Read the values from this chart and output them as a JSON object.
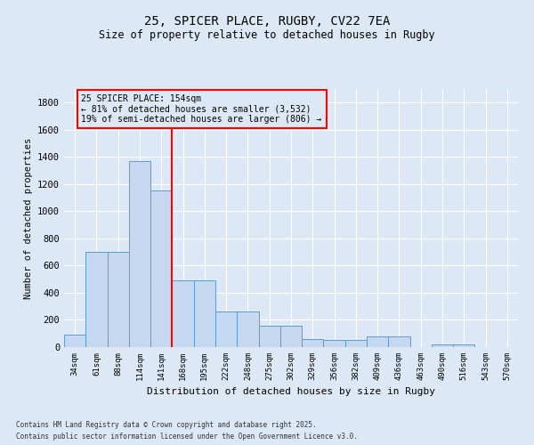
{
  "title": "25, SPICER PLACE, RUGBY, CV22 7EA",
  "subtitle": "Size of property relative to detached houses in Rugby",
  "xlabel": "Distribution of detached houses by size in Rugby",
  "ylabel": "Number of detached properties",
  "bar_labels": [
    "34sqm",
    "61sqm",
    "88sqm",
    "114sqm",
    "141sqm",
    "168sqm",
    "195sqm",
    "222sqm",
    "248sqm",
    "275sqm",
    "302sqm",
    "329sqm",
    "356sqm",
    "382sqm",
    "409sqm",
    "436sqm",
    "463sqm",
    "490sqm",
    "516sqm",
    "543sqm",
    "570sqm"
  ],
  "bar_values": [
    95,
    700,
    700,
    1370,
    1150,
    490,
    490,
    260,
    260,
    160,
    160,
    60,
    50,
    50,
    80,
    80,
    0,
    20,
    20,
    0,
    0
  ],
  "bar_color": "#c5d8f0",
  "bar_edge_color": "#5b9bd5",
  "vline_x": 4.5,
  "vline_color": "red",
  "annotation_text": "25 SPICER PLACE: 154sqm\n← 81% of detached houses are smaller (3,532)\n19% of semi-detached houses are larger (806) →",
  "annotation_box_color": "red",
  "ylim": [
    0,
    1900
  ],
  "yticks": [
    0,
    200,
    400,
    600,
    800,
    1000,
    1200,
    1400,
    1600,
    1800
  ],
  "footer_line1": "Contains HM Land Registry data © Crown copyright and database right 2025.",
  "footer_line2": "Contains public sector information licensed under the Open Government Licence v3.0.",
  "bg_color": "#dce8f5"
}
